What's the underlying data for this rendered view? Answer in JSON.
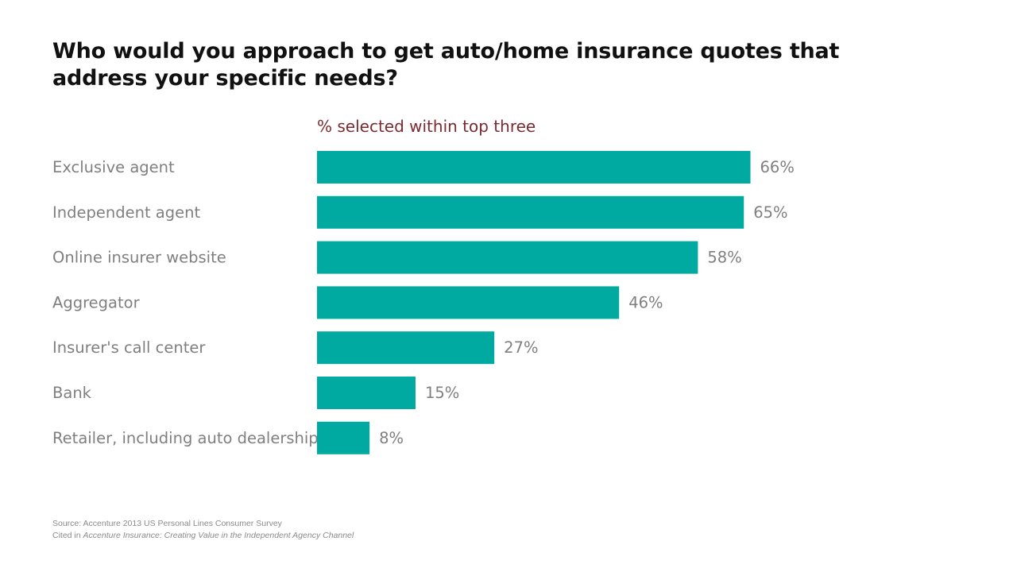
{
  "title": "Who would you approach to get auto/home insurance quotes that address your specific needs?",
  "subtitle": "% selected within top three",
  "colors": {
    "bar": "#00aaa0",
    "category_text": "#7f7f7f",
    "value_text": "#7f7f7f",
    "subtitle": "#7b2a2f"
  },
  "chart_data": {
    "type": "bar",
    "orientation": "horizontal",
    "categories": [
      "Exclusive agent",
      "Independent agent",
      "Online insurer website",
      "Aggregator",
      "Insurer's call center",
      "Bank",
      "Retailer, including auto dealership"
    ],
    "values": [
      66,
      65,
      58,
      46,
      27,
      15,
      8
    ],
    "value_labels": [
      "66%",
      "65%",
      "58%",
      "46%",
      "27%",
      "15%",
      "8%"
    ],
    "unit": "%",
    "grid": false,
    "legend": "none"
  },
  "footnote": {
    "source": "Source: Accenture 2013 US Personal Lines Consumer Survey",
    "cited_prefix": "Cited in ",
    "cited_title": "Accenture Insurance: Creating Value in the Independent Agency Channel"
  }
}
